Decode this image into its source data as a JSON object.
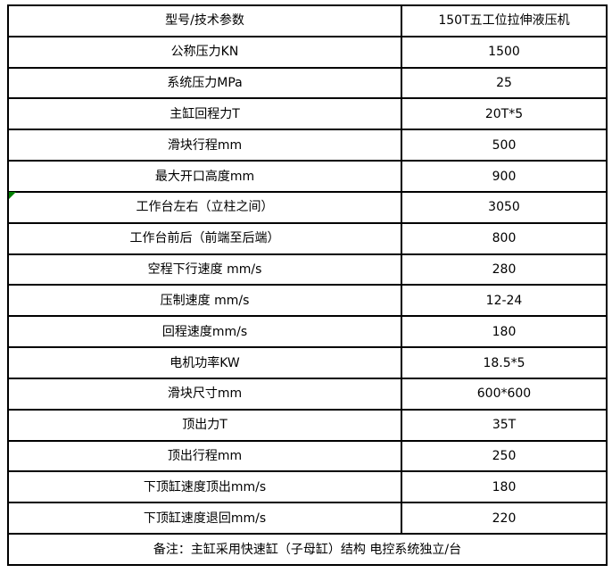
{
  "colors": {
    "border": "#000000",
    "background": "#ffffff",
    "marker_green": "#008000",
    "text": "#000000"
  },
  "table": {
    "header": {
      "param": "型号/技术参数",
      "value": "150T五工位拉伸液压机"
    },
    "rows": [
      {
        "param": "公称压力KN",
        "value": "1500"
      },
      {
        "param": "系统压力MPa",
        "value": "25"
      },
      {
        "param": "主缸回程力T",
        "value": "20T*5"
      },
      {
        "param": "滑块行程mm",
        "value": "500"
      },
      {
        "param": "最大开口高度mm",
        "value": "900"
      },
      {
        "param": "工作台左右（立柱之间）",
        "value": "3050"
      },
      {
        "param": "工作台前后（前端至后端）",
        "value": "800"
      },
      {
        "param": "空程下行速度 mm/s",
        "value": "280"
      },
      {
        "param": "压制速度 mm/s",
        "value": "12-24"
      },
      {
        "param": "回程速度mm/s",
        "value": "180"
      },
      {
        "param": "电机功率KW",
        "value": "18.5*5"
      },
      {
        "param": "滑块尺寸mm",
        "value": "600*600"
      },
      {
        "param": "顶出力T",
        "value": "35T"
      },
      {
        "param": "顶出行程mm",
        "value": "250"
      },
      {
        "param": "下顶缸速度顶出mm/s",
        "value": "180"
      },
      {
        "param": "下顶缸速度退回mm/s",
        "value": "220"
      }
    ],
    "note": "备注：主缸采用快速缸（子母缸）结构    电控系统独立/台"
  }
}
